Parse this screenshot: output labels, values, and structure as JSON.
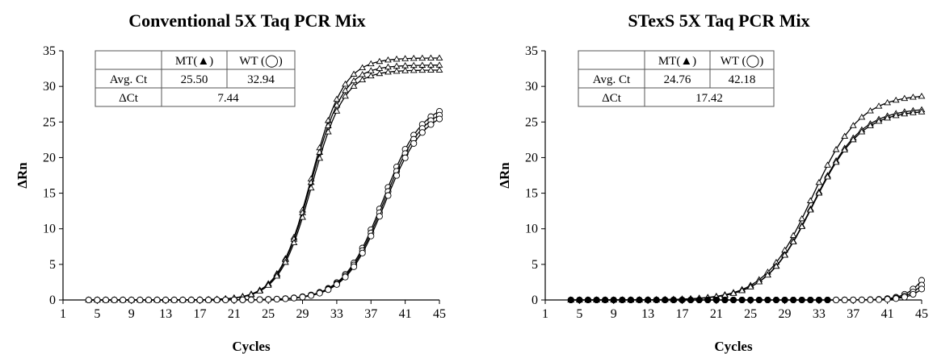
{
  "chart_data": [
    {
      "type": "line",
      "title": "Conventional  5X Taq PCR Mix",
      "xlabel": "Cycles",
      "ylabel": "ΔRn",
      "xlim": [
        1,
        45
      ],
      "ylim": [
        0,
        35
      ],
      "xticks": [
        "1",
        "5",
        "9",
        "13",
        "17",
        "21",
        "25",
        "29",
        "33",
        "37",
        "41",
        "45"
      ],
      "yticks": [
        "0",
        "5",
        "10",
        "15",
        "20",
        "25",
        "30",
        "35"
      ],
      "grid": false,
      "table": {
        "header": [
          "",
          "MT(▲)",
          "WT (◯)"
        ],
        "rows": [
          {
            "label": "Avg. Ct",
            "cells": [
              "25.50",
              "32.94"
            ]
          },
          {
            "label": "ΔCt",
            "span": "7.44"
          }
        ]
      },
      "series": [
        {
          "marker": "triangle",
          "plateau": 34.0,
          "midpoint": 30.0,
          "slope": 1.9,
          "x_start": 4,
          "x_end": 45
        },
        {
          "marker": "triangle",
          "plateau": 33.0,
          "midpoint": 30.0,
          "slope": 1.9,
          "x_start": 4,
          "x_end": 45
        },
        {
          "marker": "triangle",
          "plateau": 32.3,
          "midpoint": 30.1,
          "slope": 1.9,
          "x_start": 4,
          "x_end": 45
        },
        {
          "marker": "circle",
          "plateau": 28.0,
          "midpoint": 38.4,
          "slope": 2.3,
          "x_start": 4,
          "x_end": 45
        },
        {
          "marker": "circle",
          "plateau": 27.5,
          "midpoint": 38.5,
          "slope": 2.3,
          "x_start": 4,
          "x_end": 45
        },
        {
          "marker": "circle",
          "plateau": 27.0,
          "midpoint": 38.6,
          "slope": 2.3,
          "x_start": 4,
          "x_end": 45
        }
      ]
    },
    {
      "type": "line",
      "title": "STexS 5X Taq PCR Mix",
      "xlabel": "Cycles",
      "ylabel": "ΔRn",
      "xlim": [
        1,
        45
      ],
      "ylim": [
        0,
        35
      ],
      "xticks": [
        "1",
        "5",
        "9",
        "13",
        "17",
        "21",
        "25",
        "29",
        "33",
        "37",
        "41",
        "45"
      ],
      "yticks": [
        "0",
        "5",
        "10",
        "15",
        "20",
        "25",
        "30",
        "35"
      ],
      "grid": false,
      "table": {
        "header": [
          "",
          "MT(▲)",
          "WT (◯)"
        ],
        "rows": [
          {
            "label": "Avg. Ct",
            "cells": [
              "24.76",
              "42.18"
            ]
          },
          {
            "label": "ΔCt",
            "span": "17.42"
          }
        ]
      },
      "series": [
        {
          "marker": "triangle",
          "plateau": 28.9,
          "midpoint": 32.2,
          "slope": 2.8,
          "x_start": 4,
          "x_end": 45
        },
        {
          "marker": "triangle",
          "plateau": 27.0,
          "midpoint": 32.3,
          "slope": 2.8,
          "x_start": 4,
          "x_end": 45
        },
        {
          "marker": "triangle",
          "plateau": 26.7,
          "midpoint": 32.3,
          "slope": 2.8,
          "x_start": 4,
          "x_end": 45
        },
        {
          "marker": "circle",
          "plateau": 10.0,
          "midpoint": 46.3,
          "slope": 1.35,
          "x_start": 4,
          "x_end": 45,
          "hollow_from": 35
        },
        {
          "marker": "circle",
          "plateau": 10.0,
          "midpoint": 46.8,
          "slope": 1.35,
          "x_start": 4,
          "x_end": 45,
          "hollow_from": 35
        },
        {
          "marker": "circle",
          "plateau": 10.0,
          "midpoint": 47.3,
          "slope": 1.35,
          "x_start": 4,
          "x_end": 45,
          "hollow_from": 35
        }
      ]
    }
  ]
}
